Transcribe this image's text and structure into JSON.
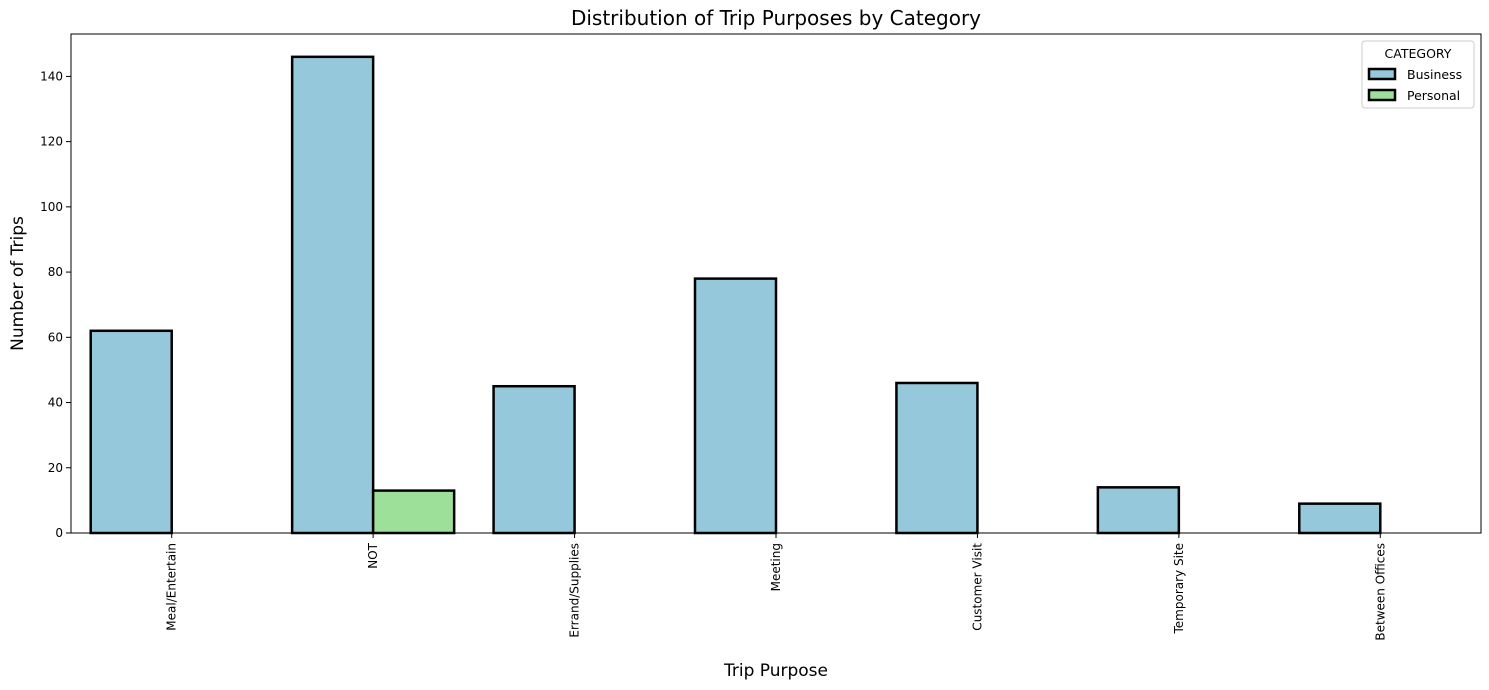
{
  "chart_data": {
    "type": "bar",
    "title": "Distribution of Trip Purposes by Category",
    "xlabel": "Trip Purpose",
    "ylabel": "Number of Trips",
    "categories": [
      "Meal/Entertain",
      "NOT",
      "Errand/Supplies",
      "Meeting",
      "Customer Visit",
      "Temporary Site",
      "Between Offices"
    ],
    "series": [
      {
        "name": "Business",
        "color": "#96c8dc",
        "values": [
          62,
          146,
          45,
          78,
          46,
          14,
          9
        ]
      },
      {
        "name": "Personal",
        "color": "#9de09a",
        "values": [
          0,
          13,
          0,
          0,
          0,
          0,
          0
        ]
      }
    ],
    "ylim": [
      0,
      153
    ],
    "yticks": [
      0,
      20,
      40,
      60,
      80,
      100,
      120,
      140
    ],
    "x_tick_rotation": "vertical",
    "grid": false,
    "legend": {
      "title": "CATEGORY",
      "placement": "top-right"
    },
    "edge_color": "#000000"
  }
}
